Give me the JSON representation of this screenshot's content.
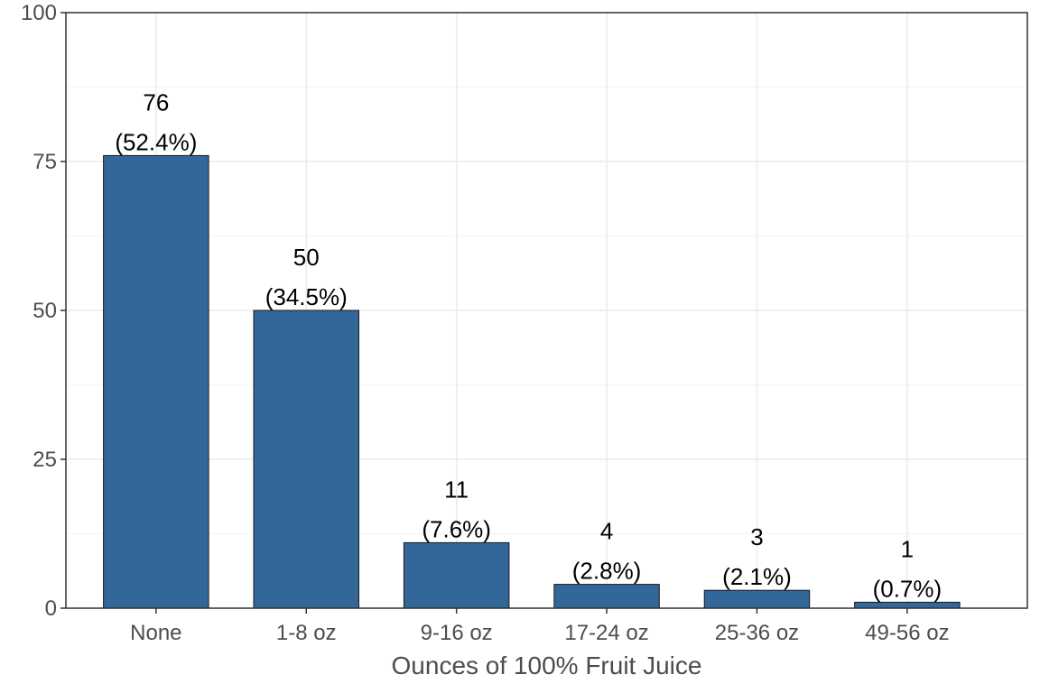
{
  "chart_data": {
    "type": "bar",
    "title": "",
    "xlabel": "Ounces of 100% Fruit Juice",
    "ylabel": "",
    "categories": [
      "None",
      "1-8 oz",
      "9-16 oz",
      "17-24 oz",
      "25-36 oz",
      "49-56 oz"
    ],
    "values": [
      76,
      50,
      11,
      4,
      3,
      1
    ],
    "value_labels": [
      "76",
      "50",
      "11",
      "4",
      "3",
      "1"
    ],
    "percent_labels": [
      "(52.4%)",
      "(34.5%)",
      "(7.6%)",
      "(2.8%)",
      "(2.1%)",
      "(0.7%)"
    ],
    "ylim": [
      0,
      100
    ],
    "yticks": [
      0,
      25,
      50,
      75,
      100
    ],
    "ytick_labels": [
      "0",
      "25",
      "50",
      "75",
      "100"
    ],
    "grid": true,
    "legend": "none",
    "colors": {
      "bar_fill": "#336699",
      "bar_stroke": "#1a1a1a",
      "grid_major": "#ebebeb",
      "grid_minor": "#f5f5f5",
      "panel_border": "#333333"
    }
  }
}
